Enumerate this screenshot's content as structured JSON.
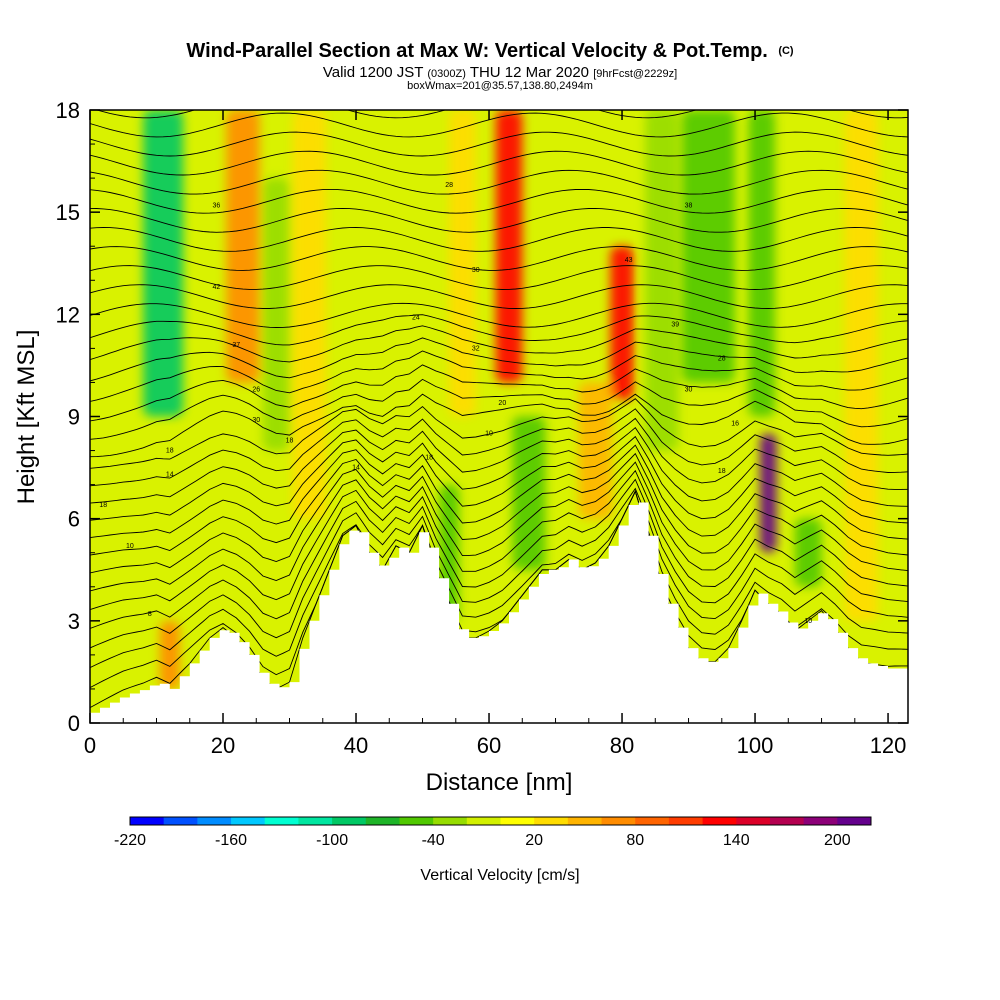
{
  "chart_data": {
    "type": "heatmap",
    "title": "Wind-Parallel Section at Max W: Vertical Velocity & Pot.Temp.",
    "title_mark": "(C)",
    "subtitle_parts": [
      "Valid 1200 JST",
      "(0300Z)",
      "THU 12 Mar 2020",
      "[9hrFcst@2229z]"
    ],
    "subtitle2": "boxWmax=201@35.57,138.80,2494m",
    "xlabel": "Distance [nm]",
    "ylabel": "Height [Kft MSL]",
    "xlim": [
      0,
      123
    ],
    "ylim": [
      0,
      18
    ],
    "x_ticks": [
      0,
      20,
      40,
      60,
      80,
      100,
      120
    ],
    "y_ticks": [
      0,
      3,
      6,
      9,
      12,
      15,
      18
    ],
    "colorbar": {
      "title": "Vertical Velocity [cm/s]",
      "range": [
        -220,
        220
      ],
      "tick_labels": [
        "-220",
        "-160",
        "-100",
        "-40",
        "20",
        "80",
        "140",
        "200"
      ],
      "colors": [
        "#0000ff",
        "#0050ff",
        "#008cff",
        "#00c8ff",
        "#00ffd2",
        "#00e6a0",
        "#00c864",
        "#1eb428",
        "#50c800",
        "#96dc00",
        "#d2f000",
        "#ffff00",
        "#ffdc00",
        "#ffb400",
        "#ff8c00",
        "#ff6400",
        "#ff3c00",
        "#ff0000",
        "#dc0028",
        "#b40050",
        "#8c0078",
        "#64008c"
      ]
    },
    "velocity_features": [
      {
        "x": 11,
        "z_min": 9,
        "z_max": 18,
        "w": -90,
        "width": 6
      },
      {
        "x": 12,
        "z_min": 1,
        "z_max": 3,
        "w": 70,
        "width": 3
      },
      {
        "x": 23,
        "z_min": 10,
        "z_max": 18,
        "w": 70,
        "width": 5
      },
      {
        "x": 28,
        "z_min": 8,
        "z_max": 16,
        "w": -40,
        "width": 4
      },
      {
        "x": 33,
        "z_min": 6,
        "z_max": 18,
        "w": 30,
        "width": 5
      },
      {
        "x": 54,
        "z_min": 3,
        "z_max": 7,
        "w": -60,
        "width": 3
      },
      {
        "x": 56,
        "z_min": 9,
        "z_max": 18,
        "w": 25,
        "width": 4
      },
      {
        "x": 63,
        "z_min": 10,
        "z_max": 18,
        "w": 125,
        "width": 4
      },
      {
        "x": 66,
        "z_min": 4.5,
        "z_max": 9,
        "w": -50,
        "width": 5
      },
      {
        "x": 76,
        "z_min": 6,
        "z_max": 10,
        "w": 40,
        "width": 5
      },
      {
        "x": 80,
        "z_min": 9.5,
        "z_max": 14,
        "w": 120,
        "width": 3.5
      },
      {
        "x": 86,
        "z_min": 8,
        "z_max": 18,
        "w": -40,
        "width": 5
      },
      {
        "x": 93,
        "z_min": 10,
        "z_max": 18,
        "w": -50,
        "width": 8
      },
      {
        "x": 102,
        "z_min": 5,
        "z_max": 8.5,
        "w": 200,
        "width": 2.5
      },
      {
        "x": 101,
        "z_min": 9,
        "z_max": 18,
        "w": -60,
        "width": 4
      },
      {
        "x": 108,
        "z_min": 4,
        "z_max": 6,
        "w": -60,
        "width": 4
      },
      {
        "x": 116,
        "z_min": 3,
        "z_max": 18,
        "w": 30,
        "width": 5
      }
    ],
    "terrain": [
      [
        0,
        0.3
      ],
      [
        3,
        0.6
      ],
      [
        5,
        0.8
      ],
      [
        8,
        1.0
      ],
      [
        10,
        1.2
      ],
      [
        12,
        1.0
      ],
      [
        14,
        1.5
      ],
      [
        16,
        2.0
      ],
      [
        18,
        2.5
      ],
      [
        20,
        2.8
      ],
      [
        22,
        2.5
      ],
      [
        24,
        2.0
      ],
      [
        26,
        1.3
      ],
      [
        28,
        1.0
      ],
      [
        30,
        1.2
      ],
      [
        32,
        2.5
      ],
      [
        34,
        3.5
      ],
      [
        36,
        4.5
      ],
      [
        38,
        5.5
      ],
      [
        40,
        5.8
      ],
      [
        42,
        5.0
      ],
      [
        44,
        4.5
      ],
      [
        46,
        5.2
      ],
      [
        48,
        5.0
      ],
      [
        50,
        5.8
      ],
      [
        52,
        4.5
      ],
      [
        54,
        3.5
      ],
      [
        56,
        2.5
      ],
      [
        58,
        2.5
      ],
      [
        60,
        2.7
      ],
      [
        62,
        3.0
      ],
      [
        64,
        3.5
      ],
      [
        66,
        4.0
      ],
      [
        68,
        4.5
      ],
      [
        70,
        4.5
      ],
      [
        72,
        4.8
      ],
      [
        74,
        4.5
      ],
      [
        76,
        4.7
      ],
      [
        78,
        5.2
      ],
      [
        80,
        6.0
      ],
      [
        82,
        6.8
      ],
      [
        84,
        5.5
      ],
      [
        86,
        4.0
      ],
      [
        88,
        3.0
      ],
      [
        90,
        2.2
      ],
      [
        92,
        1.8
      ],
      [
        94,
        1.8
      ],
      [
        96,
        2.2
      ],
      [
        98,
        3.0
      ],
      [
        100,
        3.9
      ],
      [
        102,
        3.5
      ],
      [
        104,
        3.2
      ],
      [
        106,
        2.7
      ],
      [
        108,
        3.0
      ],
      [
        110,
        3.3
      ],
      [
        112,
        2.8
      ],
      [
        114,
        2.2
      ],
      [
        116,
        1.8
      ],
      [
        118,
        1.7
      ],
      [
        120,
        1.6
      ],
      [
        123,
        1.6
      ]
    ],
    "isentrope_labels": [
      {
        "text": "36",
        "x": 19,
        "z": 15.2
      },
      {
        "text": "28",
        "x": 54,
        "z": 15.8
      },
      {
        "text": "38",
        "x": 90,
        "z": 15.2
      },
      {
        "text": "30",
        "x": 58,
        "z": 13.3
      },
      {
        "text": "42",
        "x": 19,
        "z": 12.8
      },
      {
        "text": "43",
        "x": 81,
        "z": 13.6
      },
      {
        "text": "24",
        "x": 49,
        "z": 11.9
      },
      {
        "text": "39",
        "x": 88,
        "z": 11.7
      },
      {
        "text": "37",
        "x": 22,
        "z": 11.1
      },
      {
        "text": "32",
        "x": 58,
        "z": 11.0
      },
      {
        "text": "28",
        "x": 95,
        "z": 10.7
      },
      {
        "text": "26",
        "x": 25,
        "z": 9.8
      },
      {
        "text": "20",
        "x": 62,
        "z": 9.4
      },
      {
        "text": "30",
        "x": 90,
        "z": 9.8
      },
      {
        "text": "30",
        "x": 25,
        "z": 8.9
      },
      {
        "text": "16",
        "x": 97,
        "z": 8.8
      },
      {
        "text": "18",
        "x": 30,
        "z": 8.3
      },
      {
        "text": "10",
        "x": 60,
        "z": 8.5
      },
      {
        "text": "18",
        "x": 12,
        "z": 8.0
      },
      {
        "text": "18",
        "x": 51,
        "z": 7.8
      },
      {
        "text": "14",
        "x": 40,
        "z": 7.5
      },
      {
        "text": "14",
        "x": 12,
        "z": 7.3
      },
      {
        "text": "18",
        "x": 95,
        "z": 7.4
      },
      {
        "text": "18",
        "x": 2,
        "z": 6.4
      },
      {
        "text": "10",
        "x": 6,
        "z": 5.2
      },
      {
        "text": "8",
        "x": 9,
        "z": 3.2
      },
      {
        "text": "10",
        "x": 108,
        "z": 3.0
      }
    ]
  }
}
